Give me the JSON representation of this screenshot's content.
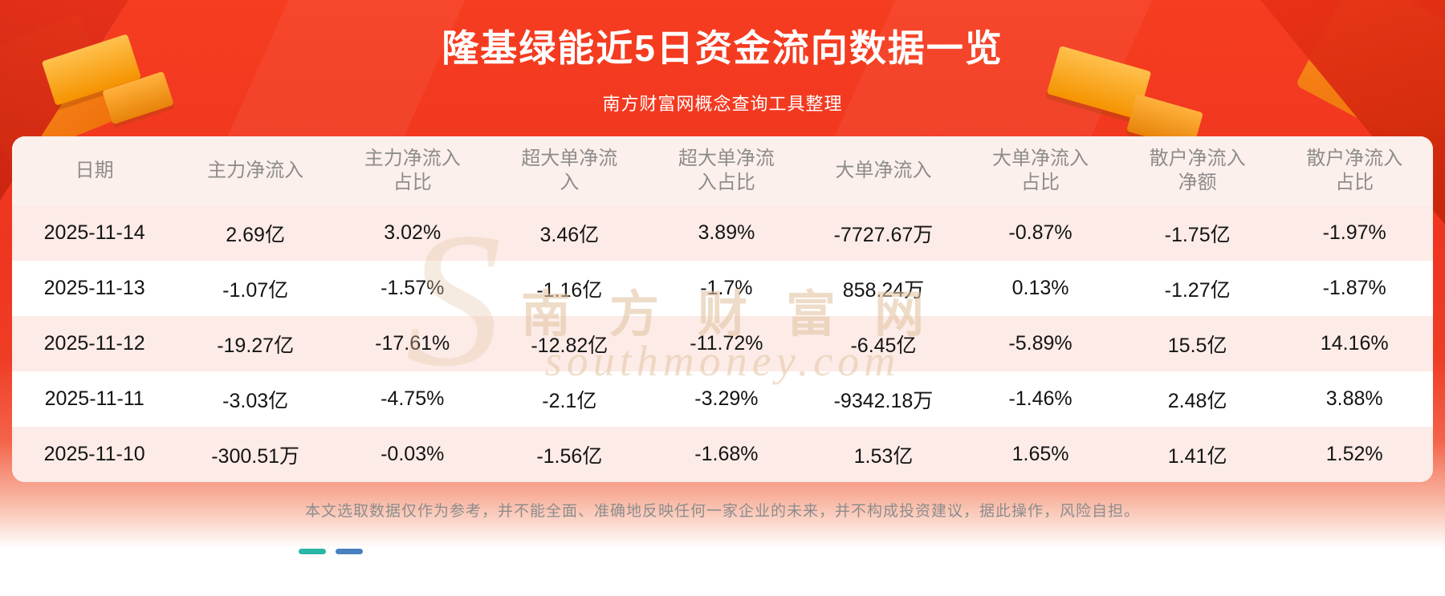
{
  "page": {
    "title": "隆基绿能近5日资金流向数据一览",
    "subtitle": "南方财富网概念查询工具整理",
    "disclaimer": "本文选取数据仅作为参考，并不能全面、准确地反映任何一家企业的未来，并不构成投资建议，据此操作，风险自担。",
    "watermark": {
      "monogram": "S",
      "cn": "南方财富网",
      "en": "southmoney.com"
    }
  },
  "colors": {
    "background_red": "#ee3520",
    "decoration_gold": "#f59300",
    "table_stripe_pink": "#fcebe7",
    "header_bg_pink": "#fcf0ec",
    "header_text": "#8e8c8c",
    "body_text": "#141414",
    "watermark_tan": "#e2c4a3",
    "dash_teal": "#2ab6a5",
    "dash_blue": "#4a7fc0"
  },
  "chart_data": {
    "type": "table",
    "title": "隆基绿能近5日资金流向数据一览",
    "columns": [
      "日期",
      "主力净流入",
      "主力净流入占比",
      "超大单净流入",
      "超大单净流入占比",
      "大单净流入",
      "大单净流入占比",
      "散户净流入净额",
      "散户净流入占比"
    ],
    "rows": [
      [
        "2025-11-14",
        "2.69亿",
        "3.02%",
        "3.46亿",
        "3.89%",
        "-7727.67万",
        "-0.87%",
        "-1.75亿",
        "-1.97%"
      ],
      [
        "2025-11-13",
        "-1.07亿",
        "-1.57%",
        "-1.16亿",
        "-1.7%",
        "858.24万",
        "0.13%",
        "-1.27亿",
        "-1.87%"
      ],
      [
        "2025-11-12",
        "-19.27亿",
        "-17.61%",
        "-12.82亿",
        "-11.72%",
        "-6.45亿",
        "-5.89%",
        "15.5亿",
        "14.16%"
      ],
      [
        "2025-11-11",
        "-3.03亿",
        "-4.75%",
        "-2.1亿",
        "-3.29%",
        "-9342.18万",
        "-1.46%",
        "2.48亿",
        "3.88%"
      ],
      [
        "2025-11-10",
        "-300.51万",
        "-0.03%",
        "-1.56亿",
        "-1.68%",
        "1.53亿",
        "1.65%",
        "1.41亿",
        "1.52%"
      ]
    ]
  }
}
